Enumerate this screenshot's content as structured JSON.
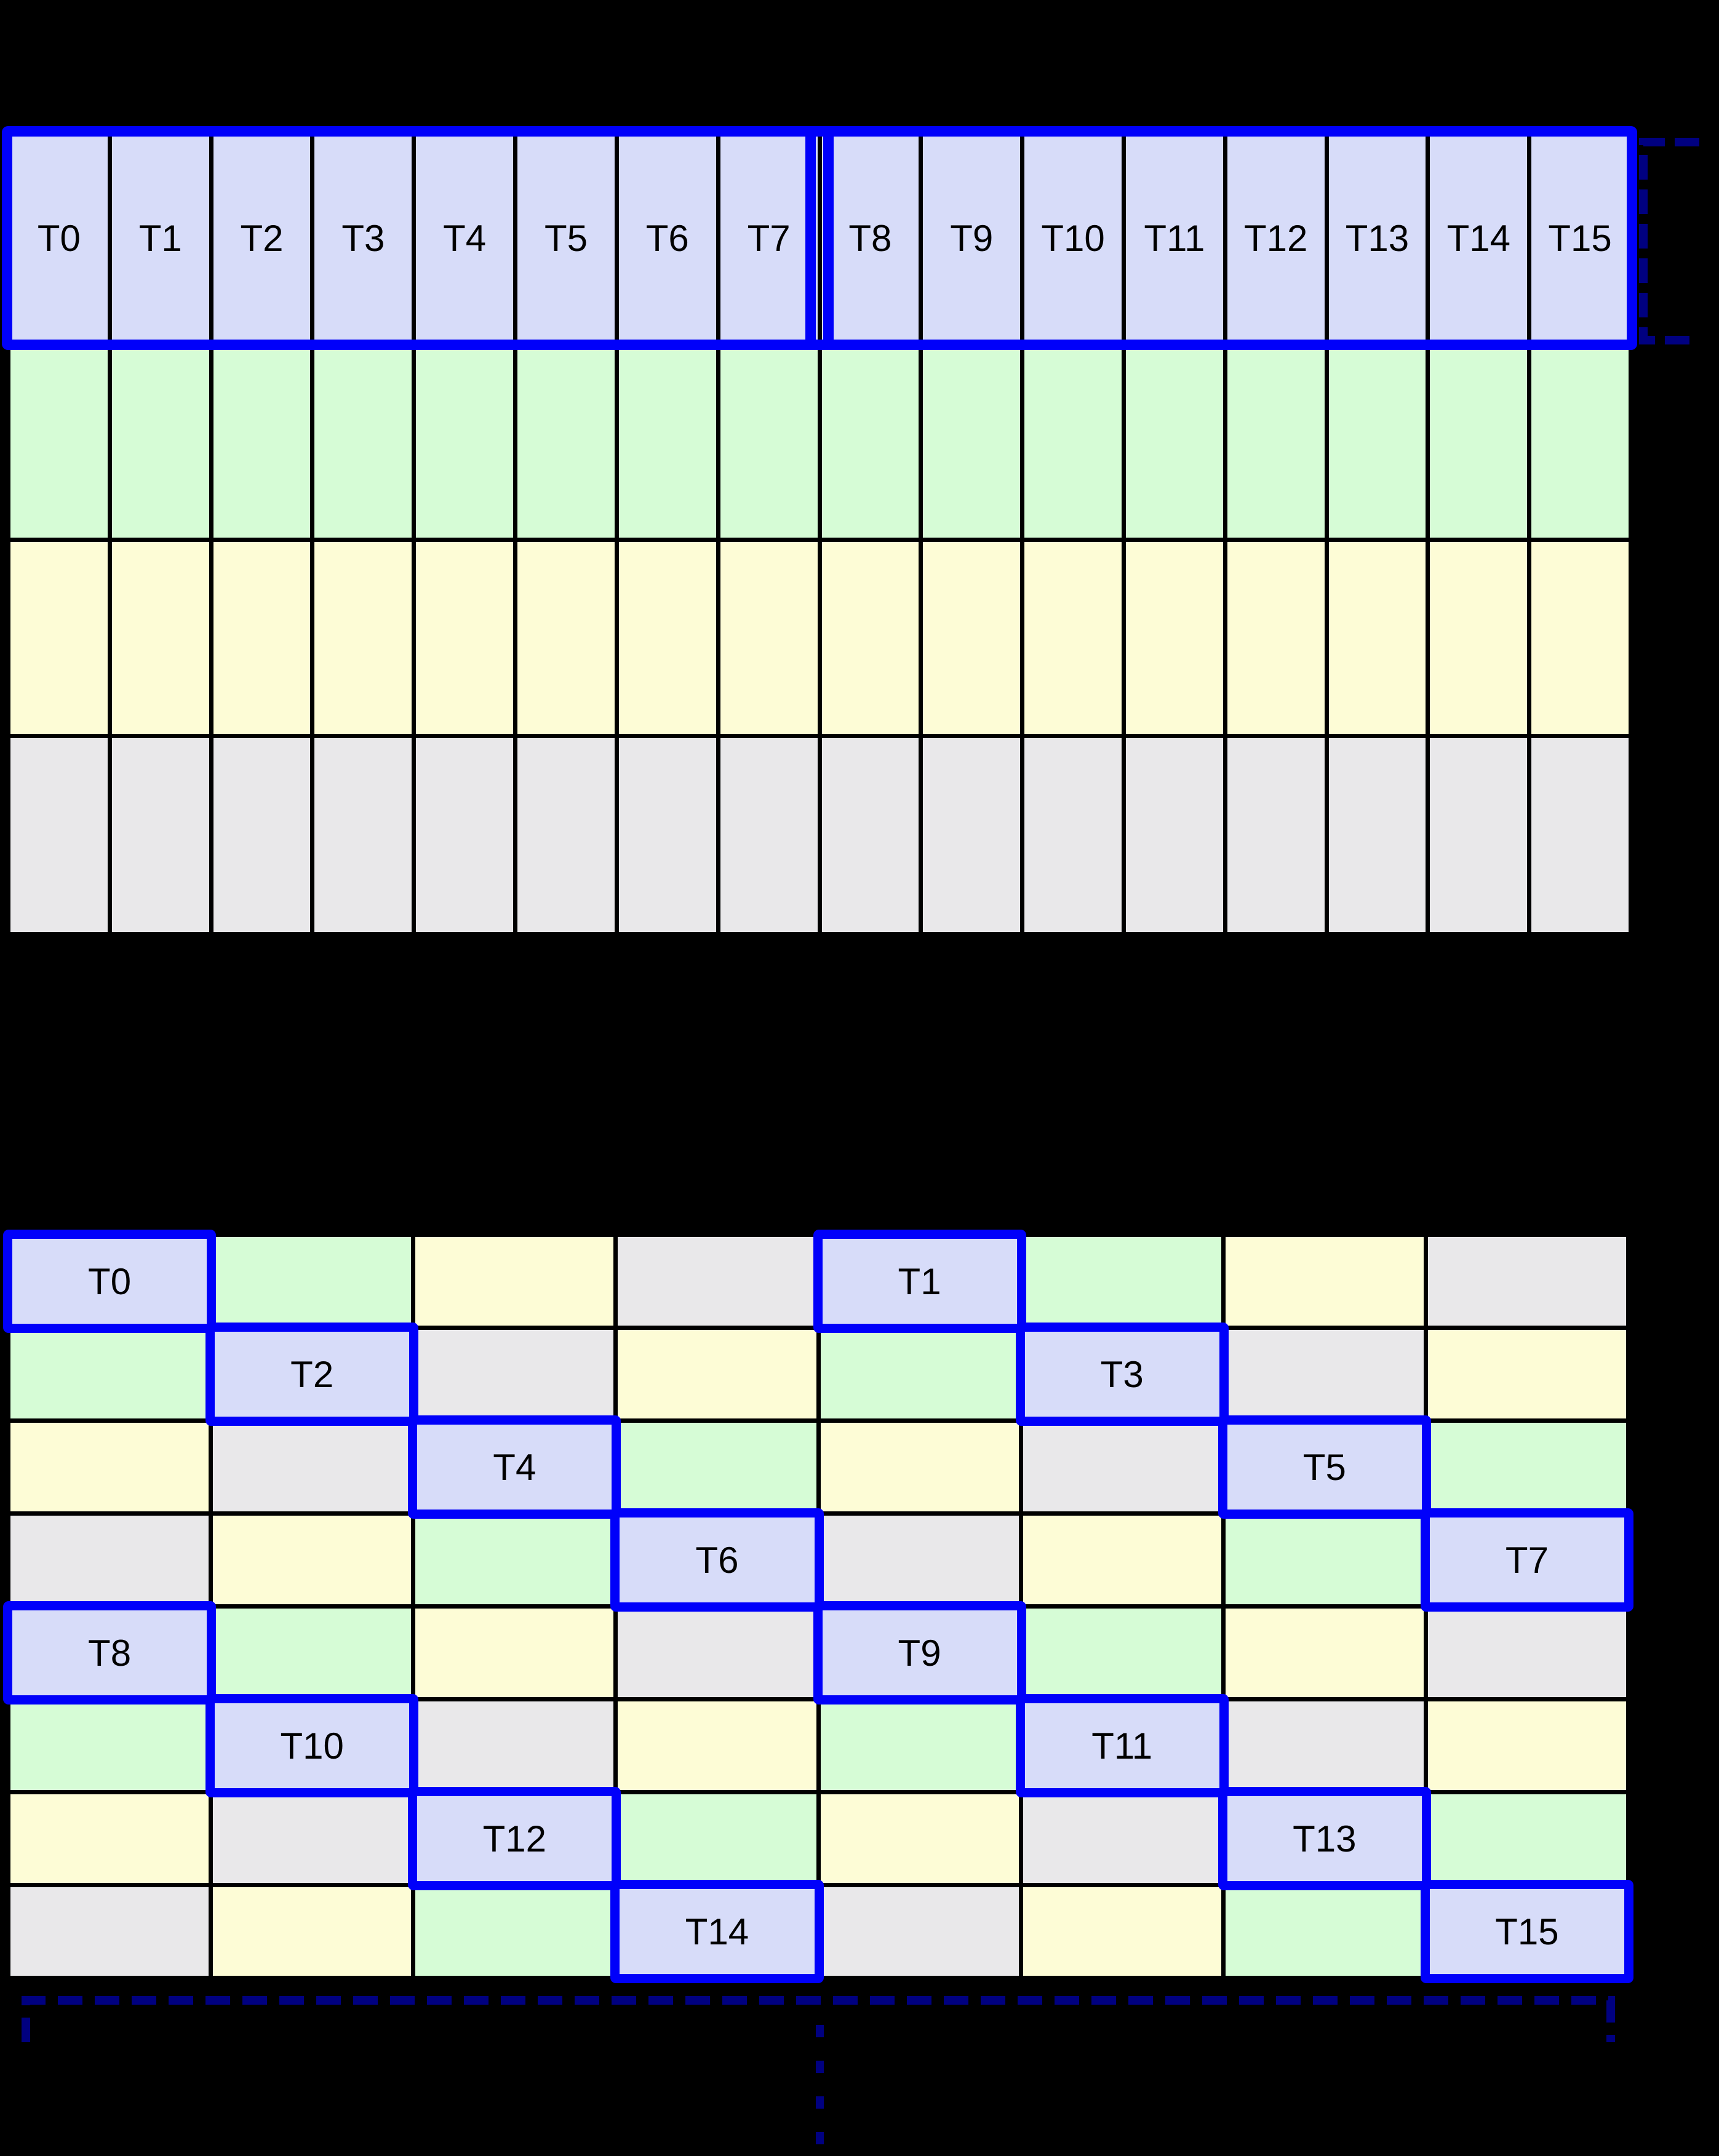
{
  "colors": {
    "background": "#000000",
    "thread_cell": "#d7dcf9",
    "green_cell": "#d6fcd6",
    "yellow_cell": "#fdfcd6",
    "gray_cell": "#e9e8ea",
    "highlight_blue": "#0000fa",
    "bracket_navy": "#000080",
    "gridline": "#000000",
    "label_text": "#000000"
  },
  "top_grid": {
    "columns": 16,
    "thread_labels": [
      "T0",
      "T1",
      "T2",
      "T3",
      "T4",
      "T5",
      "T6",
      "T7",
      "T8",
      "T9",
      "T10",
      "T11",
      "T12",
      "T13",
      "T14",
      "T15"
    ],
    "thread_groups": [
      {
        "start_label": "T0",
        "end_label": "T7"
      },
      {
        "start_label": "T8",
        "end_label": "T15"
      }
    ],
    "data_row_colors": [
      "green_cell",
      "yellow_cell",
      "gray_cell"
    ]
  },
  "bottom_grid": {
    "columns": 8,
    "rows": [
      [
        {
          "color": "thread_cell",
          "label": "T0"
        },
        {
          "color": "green_cell"
        },
        {
          "color": "yellow_cell"
        },
        {
          "color": "gray_cell"
        },
        {
          "color": "thread_cell",
          "label": "T1"
        },
        {
          "color": "green_cell"
        },
        {
          "color": "yellow_cell"
        },
        {
          "color": "gray_cell"
        }
      ],
      [
        {
          "color": "green_cell"
        },
        {
          "color": "thread_cell",
          "label": "T2"
        },
        {
          "color": "gray_cell"
        },
        {
          "color": "yellow_cell"
        },
        {
          "color": "green_cell"
        },
        {
          "color": "thread_cell",
          "label": "T3"
        },
        {
          "color": "gray_cell"
        },
        {
          "color": "yellow_cell"
        }
      ],
      [
        {
          "color": "yellow_cell"
        },
        {
          "color": "gray_cell"
        },
        {
          "color": "thread_cell",
          "label": "T4"
        },
        {
          "color": "green_cell"
        },
        {
          "color": "yellow_cell"
        },
        {
          "color": "gray_cell"
        },
        {
          "color": "thread_cell",
          "label": "T5"
        },
        {
          "color": "green_cell"
        }
      ],
      [
        {
          "color": "gray_cell"
        },
        {
          "color": "yellow_cell"
        },
        {
          "color": "green_cell"
        },
        {
          "color": "thread_cell",
          "label": "T6"
        },
        {
          "color": "gray_cell"
        },
        {
          "color": "yellow_cell"
        },
        {
          "color": "green_cell"
        },
        {
          "color": "thread_cell",
          "label": "T7"
        }
      ],
      [
        {
          "color": "thread_cell",
          "label": "T8"
        },
        {
          "color": "green_cell"
        },
        {
          "color": "yellow_cell"
        },
        {
          "color": "gray_cell"
        },
        {
          "color": "thread_cell",
          "label": "T9"
        },
        {
          "color": "green_cell"
        },
        {
          "color": "yellow_cell"
        },
        {
          "color": "gray_cell"
        }
      ],
      [
        {
          "color": "green_cell"
        },
        {
          "color": "thread_cell",
          "label": "T10"
        },
        {
          "color": "gray_cell"
        },
        {
          "color": "yellow_cell"
        },
        {
          "color": "green_cell"
        },
        {
          "color": "thread_cell",
          "label": "T11"
        },
        {
          "color": "gray_cell"
        },
        {
          "color": "yellow_cell"
        }
      ],
      [
        {
          "color": "yellow_cell"
        },
        {
          "color": "gray_cell"
        },
        {
          "color": "thread_cell",
          "label": "T12"
        },
        {
          "color": "green_cell"
        },
        {
          "color": "yellow_cell"
        },
        {
          "color": "gray_cell"
        },
        {
          "color": "thread_cell",
          "label": "T13"
        },
        {
          "color": "green_cell"
        }
      ],
      [
        {
          "color": "gray_cell"
        },
        {
          "color": "yellow_cell"
        },
        {
          "color": "green_cell"
        },
        {
          "color": "thread_cell",
          "label": "T14"
        },
        {
          "color": "gray_cell"
        },
        {
          "color": "yellow_cell"
        },
        {
          "color": "green_cell"
        },
        {
          "color": "thread_cell",
          "label": "T15"
        }
      ]
    ]
  }
}
